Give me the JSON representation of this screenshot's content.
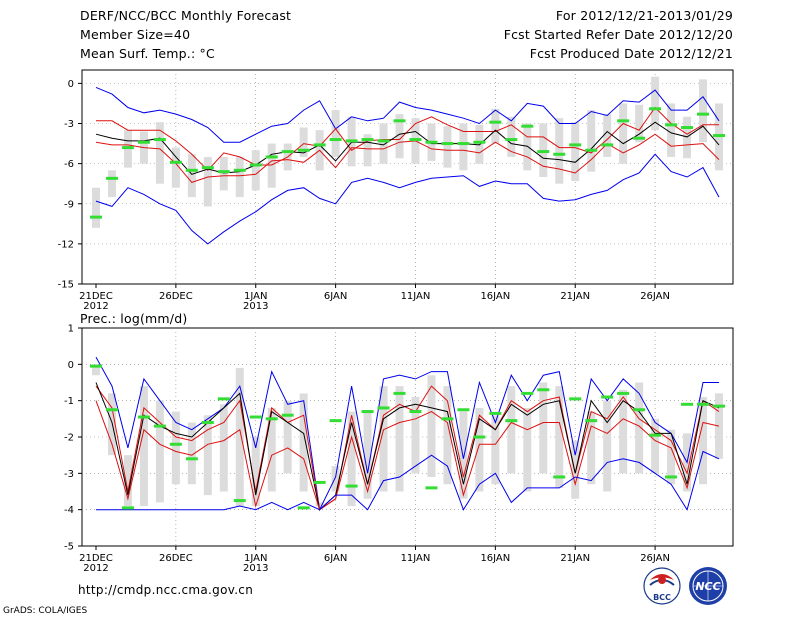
{
  "header": {
    "left": [
      "DERF/NCC/BCC Monthly Forecast",
      "Member Size=40",
      "Mean Surf. Temp.: °C"
    ],
    "right": [
      "For 2012/12/21-2013/01/29",
      "Fcst Started Refer Date 2012/12/20",
      "Fcst Produced Date 2012/12/21"
    ]
  },
  "footer": {
    "url": "http://cmdp.ncc.cma.gov.cn",
    "credit": "GrADS: COLA/IGES",
    "logo_left": "BCC",
    "logo_right": "NCC"
  },
  "colors": {
    "outer": "#0000ee",
    "inner": "#dd1111",
    "mean": "#000000",
    "obs": "#33dd33",
    "box": "#dcdcdc"
  },
  "chart_data": [
    {
      "type": "line",
      "title": "Mean Surf. Temp.: °C",
      "xlabel": "",
      "ylabel": "°C",
      "ylim": [
        -15,
        1
      ],
      "yticks": [
        0,
        -3,
        -6,
        -9,
        -12,
        -15
      ],
      "xtick_labels": [
        "21DEC",
        "26DEC",
        "1JAN",
        "6JAN",
        "11JAN",
        "16JAN",
        "21JAN",
        "26JAN"
      ],
      "xtick_sublabels": [
        "2012",
        "",
        "2013",
        "",
        "",
        "",
        "",
        ""
      ],
      "days": 40,
      "series": [
        {
          "name": "max",
          "values": [
            -0.3,
            -0.8,
            -1.8,
            -2.2,
            -2.0,
            -2.3,
            -2.7,
            -3.3,
            -4.4,
            -4.4,
            -3.8,
            -3.2,
            -3.0,
            -2.0,
            -1.3,
            -3.4,
            -2.5,
            -2.8,
            -2.6,
            -1.4,
            -1.8,
            -2.0,
            -2.3,
            -2.6,
            -3.0,
            -2.0,
            -2.8,
            -1.5,
            -1.7,
            -3.0,
            -3.0,
            -2.1,
            -2.4,
            -1.3,
            -1.4,
            -0.5,
            -2.0,
            -2.0,
            -1.0,
            -2.8
          ]
        },
        {
          "name": "upper",
          "values": [
            -2.8,
            -2.8,
            -3.5,
            -3.5,
            -3.5,
            -4.3,
            -5.3,
            -6.5,
            -5.2,
            -5.5,
            -6.1,
            -6.1,
            -5.5,
            -4.5,
            -4.7,
            -3.4,
            -5.0,
            -4.3,
            -4.2,
            -4.2,
            -3.0,
            -2.5,
            -3.1,
            -3.6,
            -3.6,
            -3.6,
            -3.1,
            -4.0,
            -4.0,
            -4.8,
            -4.8,
            -5.2,
            -4.2,
            -3.0,
            -3.5,
            -1.8,
            -3.0,
            -3.8,
            -3.1,
            -3.1
          ]
        },
        {
          "name": "mean",
          "values": [
            -3.8,
            -4.1,
            -4.3,
            -4.3,
            -4.1,
            -5.5,
            -6.8,
            -6.4,
            -6.7,
            -6.6,
            -6.1,
            -5.3,
            -5.1,
            -5.2,
            -4.6,
            -5.8,
            -4.4,
            -4.4,
            -4.6,
            -3.8,
            -3.6,
            -4.5,
            -4.5,
            -4.5,
            -4.6,
            -3.5,
            -4.5,
            -4.7,
            -5.6,
            -5.7,
            -5.9,
            -4.9,
            -3.6,
            -4.5,
            -3.8,
            -2.9,
            -3.7,
            -4.0,
            -3.2,
            -4.6
          ]
        },
        {
          "name": "lower",
          "values": [
            -4.4,
            -4.6,
            -4.6,
            -4.8,
            -4.9,
            -6.0,
            -7.4,
            -7.0,
            -6.9,
            -6.9,
            -6.8,
            -5.8,
            -5.7,
            -5.9,
            -5.0,
            -6.3,
            -4.8,
            -4.9,
            -4.9,
            -4.4,
            -4.3,
            -4.9,
            -5.0,
            -5.0,
            -5.2,
            -4.4,
            -5.1,
            -5.5,
            -6.2,
            -6.4,
            -6.7,
            -5.7,
            -4.5,
            -5.2,
            -4.6,
            -3.8,
            -4.7,
            -4.6,
            -4.5,
            -5.7
          ]
        },
        {
          "name": "min",
          "values": [
            -8.8,
            -9.2,
            -7.8,
            -8.3,
            -9.0,
            -9.5,
            -11.0,
            -12.0,
            -11.1,
            -10.3,
            -9.6,
            -8.7,
            -8.0,
            -7.8,
            -8.6,
            -9.0,
            -7.4,
            -7.1,
            -7.4,
            -7.8,
            -7.4,
            -7.1,
            -7.0,
            -6.9,
            -7.7,
            -7.3,
            -7.5,
            -7.5,
            -8.6,
            -8.8,
            -8.7,
            -8.3,
            -8.0,
            -7.2,
            -6.7,
            -5.3,
            -6.6,
            -7.0,
            -6.3,
            -8.5
          ]
        }
      ],
      "boxes": [
        [
          -10.8,
          -7.8
        ],
        [
          -8.5,
          -6.5
        ],
        [
          -6.3,
          -3.5
        ],
        [
          -6.0,
          -3.6
        ],
        [
          -7.5,
          -2.9
        ],
        [
          -7.8,
          -4.8
        ],
        [
          -8.5,
          -5.3
        ],
        [
          -9.2,
          -5.5
        ],
        [
          -8.0,
          -5.5
        ],
        [
          -8.5,
          -5.5
        ],
        [
          -8.0,
          -5.0
        ],
        [
          -7.8,
          -4.5
        ],
        [
          -6.5,
          -4.5
        ],
        [
          -5.5,
          -3.3
        ],
        [
          -6.5,
          -3.5
        ],
        [
          -5.5,
          -2.0
        ],
        [
          -6.2,
          -2.5
        ],
        [
          -6.2,
          -3.8
        ],
        [
          -6.0,
          -3.0
        ],
        [
          -5.6,
          -2.3
        ],
        [
          -6.0,
          -2.6
        ],
        [
          -5.8,
          -3.0
        ],
        [
          -6.3,
          -3.2
        ],
        [
          -6.5,
          -3.0
        ],
        [
          -6.0,
          -3.1
        ],
        [
          -4.5,
          -1.9
        ],
        [
          -5.5,
          -2.5
        ],
        [
          -6.5,
          -3.0
        ],
        [
          -7.0,
          -3.0
        ],
        [
          -7.5,
          -2.6
        ],
        [
          -7.3,
          -2.9
        ],
        [
          -6.6,
          -2.0
        ],
        [
          -5.5,
          -2.3
        ],
        [
          -6.0,
          -1.5
        ],
        [
          -4.4,
          -1.6
        ],
        [
          -3.5,
          0.5
        ],
        [
          -5.5,
          -1.5
        ],
        [
          -5.6,
          -2.5
        ],
        [
          -4.4,
          0.3
        ],
        [
          -6.5,
          -1.5
        ]
      ],
      "obs_name": "observed",
      "observed": [
        -10.0,
        -7.1,
        -4.8,
        -4.4,
        -4.2,
        -5.9,
        -6.5,
        -6.3,
        -6.6,
        -6.5,
        -6.1,
        -5.5,
        -5.1,
        -5.0,
        -4.6,
        -4.2,
        -4.3,
        -4.2,
        -4.3,
        -2.8,
        -4.2,
        -4.4,
        -4.5,
        -4.5,
        -4.4,
        -2.9,
        -4.2,
        -3.2,
        -5.1,
        -5.3,
        -4.6,
        -5.0,
        -4.6,
        -2.8,
        -4.1,
        -1.9,
        -3.1,
        -3.3,
        -2.3,
        -3.9
      ]
    },
    {
      "type": "line",
      "title": "Prec.: log(mm/d)",
      "xlabel": "",
      "ylabel": "log(mm/d)",
      "ylim": [
        -5,
        1
      ],
      "yticks": [
        1,
        0,
        -1,
        -2,
        -3,
        -4,
        -5
      ],
      "xtick_labels": [
        "21DEC",
        "26DEC",
        "1JAN",
        "6JAN",
        "11JAN",
        "16JAN",
        "21JAN",
        "26JAN"
      ],
      "xtick_sublabels": [
        "2012",
        "",
        "2013",
        "",
        "",
        "",
        "",
        ""
      ],
      "days": 40,
      "series": [
        {
          "name": "max",
          "values": [
            0.2,
            -0.6,
            -2.3,
            -0.4,
            -1.0,
            -1.6,
            -1.8,
            -1.5,
            -1.2,
            -0.6,
            -2.3,
            -0.2,
            -1.1,
            -1.0,
            -4.0,
            -3.1,
            -0.6,
            -3.0,
            -0.4,
            -0.3,
            -0.4,
            -0.2,
            -0.2,
            -2.6,
            -0.5,
            -1.6,
            -0.3,
            -1.0,
            -0.3,
            -0.2,
            -2.5,
            -0.4,
            -1.0,
            -0.4,
            -0.8,
            -1.6,
            -1.9,
            -2.7,
            -0.5,
            -0.5
          ]
        },
        {
          "name": "upper",
          "values": [
            -0.6,
            -1.2,
            -3.5,
            -1.2,
            -1.6,
            -2.0,
            -2.1,
            -1.8,
            -1.6,
            -1.0,
            -3.5,
            -1.2,
            -1.6,
            -1.4,
            -4.0,
            -3.7,
            -1.4,
            -3.3,
            -1.4,
            -1.1,
            -1.3,
            -0.6,
            -1.0,
            -3.1,
            -1.4,
            -1.8,
            -1.0,
            -1.3,
            -1.0,
            -0.9,
            -3.0,
            -1.3,
            -1.5,
            -0.9,
            -1.5,
            -1.8,
            -2.1,
            -3.0,
            -1.0,
            -1.3
          ]
        },
        {
          "name": "mean",
          "values": [
            -0.5,
            -1.6,
            -3.6,
            -1.4,
            -1.7,
            -1.9,
            -2.0,
            -1.6,
            -1.2,
            -0.8,
            -3.6,
            -1.3,
            -1.6,
            -1.9,
            -4.0,
            -3.6,
            -1.6,
            -3.3,
            -1.5,
            -1.2,
            -1.1,
            -1.2,
            -1.3,
            -3.3,
            -1.5,
            -1.8,
            -1.1,
            -1.4,
            -1.1,
            -1.0,
            -3.0,
            -1.0,
            -1.6,
            -1.0,
            -1.3,
            -1.9,
            -1.9,
            -3.3,
            -1.0,
            -1.2
          ]
        },
        {
          "name": "lower",
          "values": [
            -1.0,
            -2.2,
            -3.7,
            -1.8,
            -2.2,
            -2.4,
            -2.5,
            -2.2,
            -2.1,
            -1.8,
            -3.9,
            -2.5,
            -2.3,
            -2.6,
            -4.0,
            -3.7,
            -2.0,
            -3.5,
            -1.8,
            -1.6,
            -1.5,
            -1.3,
            -1.6,
            -3.6,
            -2.2,
            -2.2,
            -1.6,
            -1.8,
            -1.6,
            -1.6,
            -3.3,
            -1.7,
            -1.9,
            -1.5,
            -1.7,
            -2.1,
            -2.3,
            -3.4,
            -1.6,
            -1.7
          ]
        },
        {
          "name": "min",
          "values": [
            -4.0,
            -4.0,
            -4.0,
            -4.0,
            -4.0,
            -4.0,
            -4.0,
            -4.0,
            -4.0,
            -3.9,
            -4.0,
            -3.8,
            -4.0,
            -3.8,
            -4.0,
            -3.6,
            -3.6,
            -4.0,
            -3.2,
            -3.1,
            -2.8,
            -2.5,
            -2.8,
            -4.0,
            -3.3,
            -3.0,
            -3.8,
            -3.4,
            -3.4,
            -3.4,
            -3.1,
            -3.2,
            -2.7,
            -2.6,
            -2.7,
            -3.0,
            -3.3,
            -4.0,
            -2.4,
            -2.6
          ]
        }
      ],
      "boxes": [
        [
          -0.3,
          0.0
        ],
        [
          -2.5,
          -0.8
        ],
        [
          -3.9,
          -2.5
        ],
        [
          -3.9,
          -0.6
        ],
        [
          -3.8,
          -1.0
        ],
        [
          -3.3,
          -1.3
        ],
        [
          -3.3,
          -1.6
        ],
        [
          -3.6,
          -1.4
        ],
        [
          -3.5,
          -1.1
        ],
        [
          -3.9,
          -0.1
        ],
        [
          -3.9,
          -2.0
        ],
        [
          -3.5,
          -1.2
        ],
        [
          -3.0,
          -1.0
        ],
        [
          -3.5,
          -0.8
        ],
        [
          -3.9,
          -3.8
        ],
        [
          -3.5,
          -2.8
        ],
        [
          -3.9,
          -1.3
        ],
        [
          -3.7,
          -1.3
        ],
        [
          -3.5,
          -0.6
        ],
        [
          -3.5,
          -0.6
        ],
        [
          -3.0,
          -0.9
        ],
        [
          -3.1,
          -0.3
        ],
        [
          -3.3,
          -0.6
        ],
        [
          -3.7,
          -1.3
        ],
        [
          -3.5,
          -1.2
        ],
        [
          -3.3,
          -1.4
        ],
        [
          -3.0,
          -0.6
        ],
        [
          -3.5,
          -1.2
        ],
        [
          -3.0,
          -0.5
        ],
        [
          -3.4,
          -0.6
        ],
        [
          -3.7,
          -2.1
        ],
        [
          -3.3,
          -1.3
        ],
        [
          -3.5,
          -1.0
        ],
        [
          -3.0,
          -0.7
        ],
        [
          -3.0,
          -0.5
        ],
        [
          -3.0,
          -1.5
        ],
        [
          -3.3,
          -1.8
        ],
        [
          -3.5,
          -1.9
        ],
        [
          -3.3,
          -0.9
        ],
        [
          -2.6,
          -0.8
        ]
      ],
      "obs_name": "observed",
      "observed": [
        -0.05,
        -1.25,
        -3.95,
        -1.45,
        -1.7,
        -2.2,
        -2.6,
        -1.6,
        -0.95,
        -3.75,
        -1.45,
        -1.5,
        -1.4,
        -3.95,
        -3.25,
        -1.55,
        -3.35,
        -1.3,
        -1.2,
        -0.8,
        -1.3,
        -3.4,
        -1.5,
        -1.25,
        -2.0,
        -1.35,
        -1.55,
        -0.8,
        -0.7,
        -3.1,
        -0.95,
        -1.55,
        -0.9,
        -0.8,
        -1.25,
        -1.95,
        -3.1,
        -1.1,
        -1.1,
        -1.15
      ]
    }
  ]
}
